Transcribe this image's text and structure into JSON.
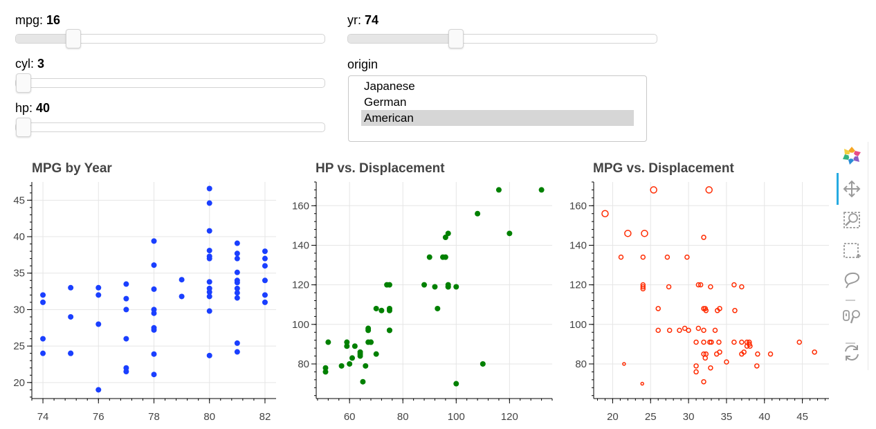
{
  "controls": {
    "mpg": {
      "label": "mpg:",
      "value": "16",
      "fraction": 0.17
    },
    "cyl": {
      "label": "cyl:",
      "value": "3",
      "fraction": 0.0
    },
    "hp": {
      "label": "hp:",
      "value": "40",
      "fraction": 0.0
    },
    "yr": {
      "label": "yr:",
      "value": "74",
      "fraction": 0.34
    },
    "origin": {
      "label": "origin",
      "options": [
        "Japanese",
        "German",
        "American"
      ],
      "selected": "American"
    }
  },
  "toolbar": {
    "tools": [
      "bokeh-logo-icon",
      "pan-icon",
      "box-zoom-icon",
      "box-select-icon",
      "lasso-select-icon",
      "hover-icon",
      "reset-icon"
    ],
    "active": "pan-icon"
  },
  "chart_data": [
    {
      "type": "scatter",
      "title": "MPG by Year",
      "xlabel": "",
      "ylabel": "",
      "xlim": [
        73.6,
        82.4
      ],
      "ylim": [
        17.8,
        47.5
      ],
      "xticks": [
        74,
        76,
        78,
        80,
        82
      ],
      "yticks": [
        20,
        25,
        30,
        35,
        40,
        45
      ],
      "grid": true,
      "color": "#1a3fff",
      "points": [
        [
          74,
          32
        ],
        [
          74,
          31
        ],
        [
          74,
          26
        ],
        [
          74,
          24
        ],
        [
          75,
          33
        ],
        [
          75,
          29
        ],
        [
          75,
          24
        ],
        [
          75,
          24
        ],
        [
          76,
          33
        ],
        [
          76,
          32
        ],
        [
          76,
          28
        ],
        [
          76,
          19
        ],
        [
          77,
          33.5
        ],
        [
          77,
          31.5
        ],
        [
          77,
          30
        ],
        [
          77,
          26
        ],
        [
          77,
          22
        ],
        [
          77,
          21.5
        ],
        [
          78,
          39.4
        ],
        [
          78,
          36.1
        ],
        [
          78,
          32.8
        ],
        [
          78,
          30
        ],
        [
          78,
          29.5
        ],
        [
          78,
          27.5
        ],
        [
          78,
          27.2
        ],
        [
          78,
          23.9
        ],
        [
          78,
          21.1
        ],
        [
          79,
          34.1
        ],
        [
          79,
          31.8
        ],
        [
          80,
          46.6
        ],
        [
          80,
          44.6
        ],
        [
          80,
          40.8
        ],
        [
          80,
          38.1
        ],
        [
          80,
          37.3
        ],
        [
          80,
          37
        ],
        [
          80,
          33.8
        ],
        [
          80,
          32.9
        ],
        [
          80,
          32.4
        ],
        [
          80,
          31.8
        ],
        [
          80,
          29.8
        ],
        [
          80,
          23.7
        ],
        [
          81,
          39.1
        ],
        [
          81,
          37.7
        ],
        [
          81,
          37
        ],
        [
          81,
          35.1
        ],
        [
          81,
          34
        ],
        [
          81,
          33.7
        ],
        [
          81,
          32.9
        ],
        [
          81,
          32.3
        ],
        [
          81,
          31.6
        ],
        [
          81,
          25.4
        ],
        [
          81,
          24.2
        ],
        [
          82,
          38
        ],
        [
          82,
          37
        ],
        [
          82,
          36
        ],
        [
          82,
          34
        ],
        [
          82,
          32
        ],
        [
          82,
          31
        ]
      ]
    },
    {
      "type": "scatter",
      "title": "HP vs. Displacement",
      "xlabel": "",
      "ylabel": "",
      "xlim": [
        47.5,
        136
      ],
      "ylim": [
        62.5,
        172
      ],
      "xticks": [
        60,
        80,
        100,
        120
      ],
      "yticks": [
        80,
        100,
        120,
        140,
        160
      ],
      "grid": true,
      "color": "#008000",
      "points": [
        [
          52,
          91
        ],
        [
          51,
          76
        ],
        [
          51,
          78
        ],
        [
          57,
          79
        ],
        [
          59,
          89
        ],
        [
          59,
          91
        ],
        [
          60,
          80
        ],
        [
          61,
          83
        ],
        [
          62,
          89
        ],
        [
          64,
          84
        ],
        [
          64,
          85
        ],
        [
          64,
          86
        ],
        [
          65,
          71
        ],
        [
          66,
          79
        ],
        [
          67,
          97
        ],
        [
          67,
          98
        ],
        [
          67,
          91
        ],
        [
          68,
          91
        ],
        [
          68,
          91
        ],
        [
          70,
          108
        ],
        [
          70,
          85
        ],
        [
          72,
          107
        ],
        [
          74,
          120
        ],
        [
          75,
          120
        ],
        [
          75,
          108
        ],
        [
          75,
          107
        ],
        [
          75,
          97
        ],
        [
          75,
          97
        ],
        [
          88,
          120
        ],
        [
          90,
          134
        ],
        [
          92,
          119
        ],
        [
          93,
          108
        ],
        [
          95,
          134
        ],
        [
          96,
          134
        ],
        [
          96,
          144
        ],
        [
          97,
          146
        ],
        [
          97,
          120
        ],
        [
          97,
          119
        ],
        [
          97,
          119
        ],
        [
          100,
          119
        ],
        [
          100,
          70
        ],
        [
          108,
          156
        ],
        [
          110,
          80
        ],
        [
          116,
          168
        ],
        [
          120,
          146
        ],
        [
          132,
          168
        ]
      ]
    },
    {
      "type": "scatter",
      "title": "MPG vs. Displacement",
      "xlabel": "",
      "ylabel": "",
      "xlim": [
        17.5,
        48.5
      ],
      "ylim": [
        62.5,
        172
      ],
      "xticks": [
        20,
        25,
        30,
        35,
        40,
        45
      ],
      "yticks": [
        80,
        100,
        120,
        140,
        160
      ],
      "grid": true,
      "color": "#ff2a00",
      "points": [
        [
          19,
          156,
          9
        ],
        [
          22,
          146,
          9
        ],
        [
          24.2,
          146,
          9
        ],
        [
          25.4,
          168,
          9
        ],
        [
          32.7,
          168,
          9
        ],
        [
          21.1,
          134,
          6
        ],
        [
          24,
          134,
          6
        ],
        [
          27.2,
          134,
          6
        ],
        [
          29.8,
          134,
          6
        ],
        [
          32,
          144,
          6
        ],
        [
          24,
          120,
          6
        ],
        [
          24,
          119,
          6
        ],
        [
          24,
          118,
          6
        ],
        [
          27.4,
          119,
          6
        ],
        [
          31.3,
          120,
          6
        ],
        [
          31.6,
          120,
          6
        ],
        [
          32.9,
          119,
          6
        ],
        [
          36,
          120,
          6
        ],
        [
          37,
          119,
          6
        ],
        [
          26,
          108,
          6
        ],
        [
          32,
          108,
          6
        ],
        [
          32.2,
          108,
          6
        ],
        [
          32.3,
          107,
          6
        ],
        [
          33.8,
          107,
          6
        ],
        [
          34.1,
          108,
          6
        ],
        [
          36.1,
          107,
          6
        ],
        [
          26,
          97,
          6
        ],
        [
          27.5,
          97,
          6
        ],
        [
          28.8,
          97,
          6
        ],
        [
          29.5,
          98,
          6
        ],
        [
          30,
          97,
          6
        ],
        [
          31.3,
          98,
          6
        ],
        [
          32,
          97,
          6
        ],
        [
          33.5,
          97,
          6
        ],
        [
          34,
          91,
          6
        ],
        [
          31,
          91,
          6
        ],
        [
          32,
          91,
          6
        ],
        [
          32.8,
          91,
          6
        ],
        [
          33,
          91,
          6
        ],
        [
          36,
          91,
          6
        ],
        [
          37,
          91,
          6
        ],
        [
          37.7,
          91,
          6
        ],
        [
          38,
          91,
          6
        ],
        [
          38,
          90,
          6
        ],
        [
          38.1,
          89,
          6
        ],
        [
          37.7,
          89,
          6
        ],
        [
          44.6,
          91,
          6
        ],
        [
          32,
          85,
          6
        ],
        [
          32.3,
          85,
          6
        ],
        [
          32.2,
          83,
          6
        ],
        [
          33.7,
          85,
          6
        ],
        [
          34.1,
          86,
          6
        ],
        [
          37,
          85,
          6
        ],
        [
          37.3,
          86,
          6
        ],
        [
          39.1,
          85,
          6
        ],
        [
          40.8,
          85,
          6
        ],
        [
          46.6,
          86,
          6
        ],
        [
          35,
          81,
          6
        ],
        [
          31,
          79,
          6
        ],
        [
          31,
          76,
          6
        ],
        [
          32.9,
          78,
          6
        ],
        [
          39,
          79,
          6
        ],
        [
          21.5,
          80,
          4
        ],
        [
          23.9,
          70,
          4
        ],
        [
          32,
          71,
          6
        ]
      ]
    }
  ]
}
